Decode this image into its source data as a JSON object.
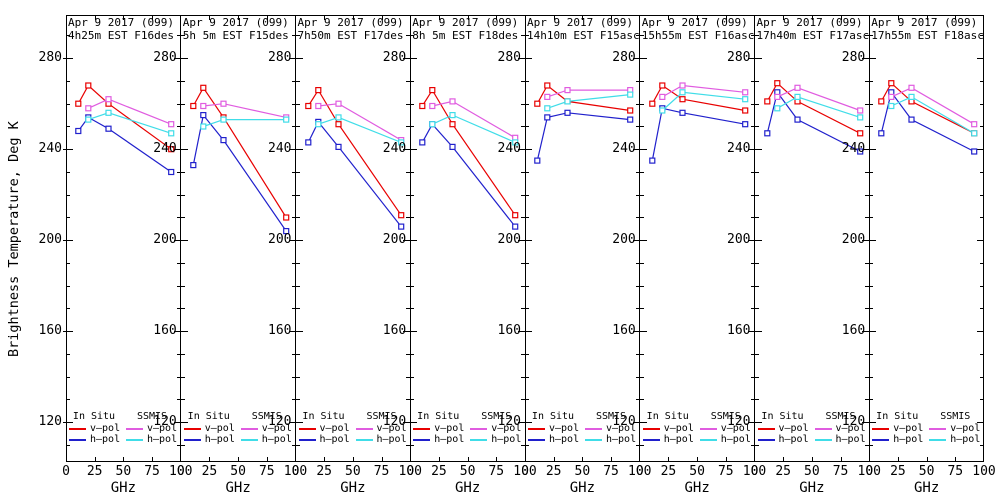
{
  "figure": {
    "ylabel": "Brightness Temperature, Deg K",
    "xlabel": "GHz",
    "x_tick_labels": [
      "0",
      "25",
      "50",
      "75",
      "100"
    ],
    "y_major_tick_labels": [
      "120",
      "160",
      "200",
      "240",
      "280"
    ]
  },
  "legend": {
    "group1": "In Situ",
    "group2": "SSMIS",
    "vpol_label": "v–pol",
    "hpol_label": "h–pol"
  },
  "colors": {
    "insitu_v": "#e80000",
    "insitu_h": "#2020cc",
    "ssmis_v": "#e05ce0",
    "ssmis_h": "#40dde8",
    "axis": "#000000",
    "background": "#ffffff"
  },
  "chart_data": {
    "type": "line",
    "xlabel": "GHz",
    "ylabel": "Brightness Temperature, Deg K",
    "xlim": [
      0,
      100
    ],
    "ylim": [
      102.5,
      299
    ],
    "x_ticks": [
      0,
      25,
      50,
      75,
      100
    ],
    "y_major_ticks": [
      120,
      160,
      200,
      240,
      280
    ],
    "y_minor_step": 10,
    "y_minor_from": 110,
    "y_minor_to": 290,
    "grid": false,
    "marker": "open-square",
    "x_insitu_ghz": [
      10.7,
      19.4,
      37.0,
      91.7
    ],
    "x_ssmis_ghz": [
      19.4,
      37.0,
      91.7
    ],
    "series_names": [
      "In Situ v-pol",
      "In Situ h-pol",
      "SSMIS v-pol",
      "SSMIS h-pol"
    ],
    "panels": [
      {
        "title_line1": "Apr 9 2017 (099)",
        "title_line2": "4h25m EST F16des",
        "insitu_v": [
          260,
          268,
          260,
          240
        ],
        "insitu_h": [
          248,
          254,
          249,
          230
        ],
        "ssmis_v": [
          258,
          262,
          251
        ],
        "ssmis_h": [
          253,
          256,
          247
        ]
      },
      {
        "title_line1": "Apr 9 2017 (099)",
        "title_line2": "5h 5m EST F15des",
        "insitu_v": [
          259,
          267,
          254,
          210
        ],
        "insitu_h": [
          233,
          255,
          244,
          204
        ],
        "ssmis_v": [
          259,
          260,
          254
        ],
        "ssmis_h": [
          250,
          253,
          253
        ]
      },
      {
        "title_line1": "Apr 9 2017 (099)",
        "title_line2": "7h50m EST F17des",
        "insitu_v": [
          259,
          266,
          251,
          211
        ],
        "insitu_h": [
          243,
          252,
          241,
          206
        ],
        "ssmis_v": [
          259,
          260,
          244
        ],
        "ssmis_h": [
          251,
          254,
          243
        ]
      },
      {
        "title_line1": "Apr 9 2017 (099)",
        "title_line2": "8h 5m EST F18des",
        "insitu_v": [
          259,
          266,
          251,
          211
        ],
        "insitu_h": [
          243,
          251,
          241,
          206
        ],
        "ssmis_v": [
          259,
          261,
          245
        ],
        "ssmis_h": [
          251,
          255,
          243
        ]
      },
      {
        "title_line1": "Apr 9 2017 (099)",
        "title_line2": "14h10m EST F15asc",
        "insitu_v": [
          260,
          268,
          261,
          257
        ],
        "insitu_h": [
          235,
          254,
          256,
          253
        ],
        "ssmis_v": [
          263,
          266,
          266
        ],
        "ssmis_h": [
          258,
          261,
          264
        ]
      },
      {
        "title_line1": "Apr 9 2017 (099)",
        "title_line2": "15h55m EST F16asc",
        "insitu_v": [
          260,
          268,
          262,
          257
        ],
        "insitu_h": [
          235,
          258,
          256,
          251
        ],
        "ssmis_v": [
          263,
          268,
          265
        ],
        "ssmis_h": [
          257,
          265,
          262
        ]
      },
      {
        "title_line1": "Apr 9 2017 (099)",
        "title_line2": "17h40m EST F17asc",
        "insitu_v": [
          261,
          269,
          261,
          247
        ],
        "insitu_h": [
          247,
          265,
          253,
          239
        ],
        "ssmis_v": [
          263,
          267,
          257
        ],
        "ssmis_h": [
          258,
          263,
          254
        ]
      },
      {
        "title_line1": "Apr 9 2017 (099)",
        "title_line2": "17h55m EST F18asc",
        "insitu_v": [
          261,
          269,
          261,
          247
        ],
        "insitu_h": [
          247,
          265,
          253,
          239
        ],
        "ssmis_v": [
          263,
          267,
          251
        ],
        "ssmis_h": [
          259,
          263,
          247
        ]
      }
    ]
  }
}
